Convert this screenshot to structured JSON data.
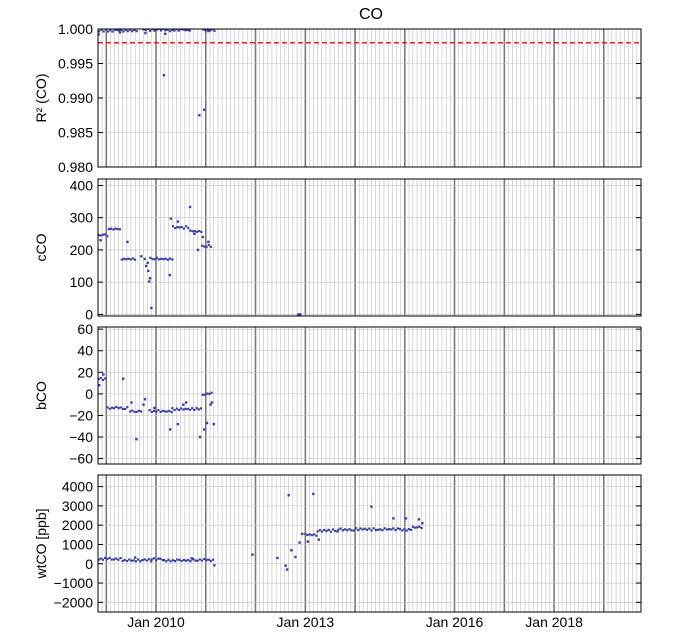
{
  "chart_data": {
    "title": "CO",
    "type": "scatter",
    "x_range": [
      "2008-11-01",
      "2019-10-01"
    ],
    "x_tick_labels": [
      "Jan 2010",
      "Jan 2013",
      "Jan 2016",
      "Jan 2018"
    ],
    "x_tick_dates": [
      "2010-01-01",
      "2013-01-01",
      "2016-01-01",
      "2018-01-01"
    ],
    "x_minor_grid": "monthly",
    "point_color": "#3b3fa0",
    "panels": [
      {
        "ylabel": "R² (CO)",
        "ylim": [
          0.98,
          1.0
        ],
        "yticks": [
          0.98,
          0.985,
          0.99,
          0.995,
          1.0
        ],
        "ytick_labels": [
          "0.980",
          "0.985",
          "0.990",
          "0.995",
          "1.000"
        ],
        "reference_line": {
          "y": 0.998,
          "color": "#e02020",
          "style": "dashed"
        },
        "series": [
          {
            "segments": [
              {
                "start": "2008-11-10",
                "end": "2009-08-20",
                "value": 0.9998
              },
              {
                "start": "2009-10-01",
                "end": "2010-09-20",
                "value": 0.99985
              },
              {
                "start": "2010-12-15",
                "end": "2011-03-10",
                "value": 0.9999
              }
            ],
            "points": [
              [
                "2008-11-05",
                0.9992
              ],
              [
                "2009-04-12",
                0.9995
              ],
              [
                "2009-10-15",
                0.9994
              ],
              [
                "2010-03-10",
                0.9993
              ],
              [
                "2010-02-28",
                0.9933
              ],
              [
                "2010-11-15",
                0.9875
              ],
              [
                "2010-12-20",
                0.9883
              ],
              [
                "2011-01-20",
                0.9997
              ]
            ]
          }
        ]
      },
      {
        "ylabel": "cCO",
        "ylim": [
          -5,
          420
        ],
        "yticks": [
          0,
          100,
          200,
          300,
          400
        ],
        "ytick_labels": [
          "0",
          "100",
          "200",
          "300",
          "400"
        ],
        "series": [
          {
            "segments": [
              {
                "start": "2008-11-05",
                "end": "2009-01-10",
                "value": 245
              },
              {
                "start": "2009-01-20",
                "end": "2009-04-20",
                "value": 265
              },
              {
                "start": "2009-04-25",
                "end": "2009-08-10",
                "value": 172
              },
              {
                "start": "2009-11-20",
                "end": "2010-05-01",
                "value": 172
              },
              {
                "start": "2010-05-05",
                "end": "2010-09-05",
                "value": 270
              },
              {
                "start": "2010-09-10",
                "end": "2010-12-01",
                "value": 258
              },
              {
                "start": "2010-12-05",
                "end": "2011-02-20",
                "value": 212
              }
            ],
            "points": [
              [
                "2008-11-20",
                230
              ],
              [
                "2009-06-05",
                225
              ],
              [
                "2009-09-15",
                180
              ],
              [
                "2009-10-10",
                172
              ],
              [
                "2009-10-20",
                150
              ],
              [
                "2009-11-01",
                160
              ],
              [
                "2009-11-05",
                135
              ],
              [
                "2009-11-12",
                102
              ],
              [
                "2009-11-18",
                112
              ],
              [
                "2009-11-28",
                20
              ],
              [
                "2010-04-12",
                122
              ],
              [
                "2010-04-20",
                297
              ],
              [
                "2010-06-10",
                288
              ],
              [
                "2010-09-08",
                333
              ],
              [
                "2010-10-10",
                250
              ],
              [
                "2010-11-05",
                200
              ],
              [
                "2010-12-10",
                240
              ],
              [
                "2011-01-20",
                225
              ],
              [
                "2012-11-10",
                0
              ],
              [
                "2012-11-25",
                0
              ]
            ]
          }
        ]
      },
      {
        "ylabel": "bCO",
        "ylim": [
          -65,
          62
        ],
        "yticks": [
          -60,
          -40,
          -20,
          0,
          20,
          40,
          60
        ],
        "ytick_labels": [
          "−60",
          "−40",
          "−20",
          "0",
          "20",
          "40",
          "60"
        ],
        "series": [
          {
            "segments": [
              {
                "start": "2008-11-05",
                "end": "2009-01-05",
                "value": 14
              },
              {
                "start": "2009-01-10",
                "end": "2009-06-20",
                "value": -13
              },
              {
                "start": "2009-06-25",
                "end": "2009-09-25",
                "value": -16
              },
              {
                "start": "2009-11-15",
                "end": "2010-05-01",
                "value": -16
              },
              {
                "start": "2010-05-01",
                "end": "2010-12-10",
                "value": -14
              },
              {
                "start": "2010-12-10",
                "end": "2011-02-20",
                "value": 0
              }
            ],
            "points": [
              [
                "2008-11-10",
                8
              ],
              [
                "2008-12-10",
                18
              ],
              [
                "2009-05-05",
                14
              ],
              [
                "2009-07-05",
                -8
              ],
              [
                "2009-08-10",
                -42
              ],
              [
                "2009-10-01",
                -10
              ],
              [
                "2009-10-12",
                -5
              ],
              [
                "2009-12-20",
                -13
              ],
              [
                "2010-04-15",
                -33
              ],
              [
                "2010-06-10",
                -28
              ],
              [
                "2010-07-20",
                -10
              ],
              [
                "2010-08-10",
                -8
              ],
              [
                "2010-11-20",
                -40
              ],
              [
                "2010-12-20",
                -33
              ],
              [
                "2011-01-10",
                -27
              ],
              [
                "2011-02-05",
                -10
              ],
              [
                "2011-02-15",
                -8
              ],
              [
                "2011-03-01",
                -28
              ]
            ]
          }
        ]
      },
      {
        "ylabel": "wtCO [ppb]",
        "ylim": [
          -2500,
          4600
        ],
        "yticks": [
          -2000,
          -1000,
          0,
          1000,
          2000,
          3000,
          4000
        ],
        "ytick_labels": [
          "−2000",
          "−1000",
          "0",
          "1000",
          "2000",
          "3000",
          "4000"
        ],
        "series": [
          {
            "segments": [
              {
                "start": "2008-11-05",
                "end": "2009-05-01",
                "value": 250
              },
              {
                "start": "2009-05-01",
                "end": "2009-12-01",
                "value": 170
              },
              {
                "start": "2009-12-01",
                "end": "2010-03-01",
                "value": 230
              },
              {
                "start": "2010-03-01",
                "end": "2010-10-01",
                "value": 170
              },
              {
                "start": "2010-10-01",
                "end": "2011-03-10",
                "value": 200
              },
              {
                "start": "2013-01-01",
                "end": "2013-04-01",
                "value": 1500
              },
              {
                "start": "2013-04-01",
                "end": "2013-09-01",
                "value": 1720
              },
              {
                "start": "2013-09-01",
                "end": "2015-03-01",
                "value": 1780
              },
              {
                "start": "2015-03-01",
                "end": "2015-05-15",
                "value": 1900
              }
            ],
            "points": [
              [
                "2009-08-01",
                320
              ],
              [
                "2010-09-20",
                280
              ],
              [
                "2011-03-05",
                -80
              ],
              [
                "2011-12-10",
                470
              ],
              [
                "2012-06-10",
                300
              ],
              [
                "2012-08-10",
                -100
              ],
              [
                "2012-08-20",
                -300
              ],
              [
                "2012-09-01",
                3550
              ],
              [
                "2012-09-20",
                700
              ],
              [
                "2012-10-20",
                350
              ],
              [
                "2012-11-20",
                1100
              ],
              [
                "2012-12-10",
                1550
              ],
              [
                "2013-01-20",
                1150
              ],
              [
                "2013-03-01",
                3620
              ],
              [
                "2013-04-10",
                1250
              ],
              [
                "2014-05-01",
                2960
              ],
              [
                "2014-10-10",
                2350
              ],
              [
                "2015-01-10",
                2350
              ],
              [
                "2015-04-15",
                2300
              ],
              [
                "2015-05-10",
                2100
              ]
            ]
          }
        ]
      }
    ]
  }
}
